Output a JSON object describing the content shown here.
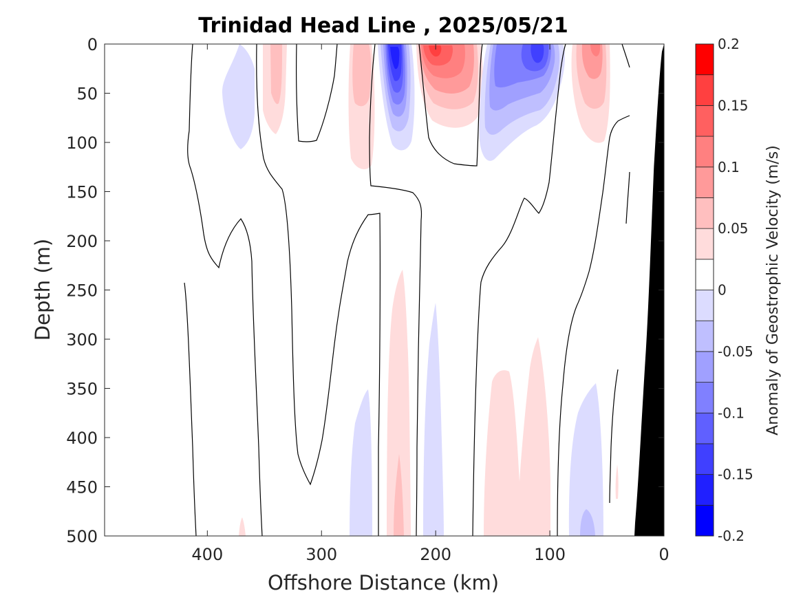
{
  "chart_data": {
    "type": "heatmap",
    "title": "Trinidad Head Line , 2025/05/21",
    "xlabel": "Offshore Distance (km)",
    "ylabel": "Depth (m)",
    "xlim": [
      490,
      0
    ],
    "ylim": [
      0,
      500
    ],
    "x_ticks": [
      "400",
      "300",
      "200",
      "100",
      "0"
    ],
    "y_ticks": [
      "0",
      "50",
      "100",
      "150",
      "200",
      "250",
      "300",
      "350",
      "400",
      "450",
      "500"
    ],
    "colorbar": {
      "label": "Anomaly of Geostrophic Velocity (m/s)",
      "range": [
        -0.2,
        0.2
      ],
      "ticks": [
        "-0.2",
        "-0.15",
        "-0.1",
        "-0.05",
        "0",
        "0.05",
        "0.1",
        "0.15",
        "0.2"
      ],
      "levels": [
        {
          "min": -0.2,
          "max": -0.175,
          "color": "#0000ff"
        },
        {
          "min": -0.175,
          "max": -0.15,
          "color": "#2020ff"
        },
        {
          "min": -0.15,
          "max": -0.125,
          "color": "#4040ff"
        },
        {
          "min": -0.125,
          "max": -0.1,
          "color": "#6060ff"
        },
        {
          "min": -0.1,
          "max": -0.075,
          "color": "#8080ff"
        },
        {
          "min": -0.075,
          "max": -0.05,
          "color": "#a0a0ff"
        },
        {
          "min": -0.05,
          "max": -0.025,
          "color": "#bfbfff"
        },
        {
          "min": -0.025,
          "max": 0,
          "color": "#dcdcff"
        },
        {
          "min": 0,
          "max": 0.025,
          "color": "#ffffff"
        },
        {
          "min": 0.025,
          "max": 0.05,
          "color": "#ffdcdc"
        },
        {
          "min": 0.05,
          "max": 0.075,
          "color": "#ffbfbf"
        },
        {
          "min": 0.075,
          "max": 0.1,
          "color": "#ff9a9a"
        },
        {
          "min": 0.1,
          "max": 0.125,
          "color": "#ff8080"
        },
        {
          "min": 0.125,
          "max": 0.15,
          "color": "#ff6060"
        },
        {
          "min": 0.15,
          "max": 0.175,
          "color": "#ff4040"
        },
        {
          "min": 0.175,
          "max": 0.2,
          "color": "#ff0000"
        }
      ]
    },
    "anomaly_features": [
      {
        "sign": "negative",
        "x_range": [
          395,
          360
        ],
        "depth_range": [
          0,
          105
        ],
        "peak": -0.03
      },
      {
        "sign": "positive",
        "x_range": [
          350,
          325
        ],
        "depth_range": [
          0,
          92
        ],
        "peak": 0.06
      },
      {
        "sign": "positive",
        "x_range": [
          285,
          255
        ],
        "depth_range": [
          0,
          128
        ],
        "peak": 0.08
      },
      {
        "sign": "negative",
        "x_range": [
          250,
          205
        ],
        "depth_range": [
          0,
          118
        ],
        "peak": -0.19
      },
      {
        "sign": "positive",
        "x_range": [
          210,
          150
        ],
        "depth_range": [
          0,
          88
        ],
        "peak": 0.16
      },
      {
        "sign": "negative",
        "x_range": [
          160,
          85
        ],
        "depth_range": [
          0,
          120
        ],
        "peak": -0.14
      },
      {
        "sign": "positive",
        "x_range": [
          80,
          40
        ],
        "depth_range": [
          0,
          110
        ],
        "peak": 0.1
      },
      {
        "sign": "positive",
        "x_range": [
          370,
          365
        ],
        "depth_range": [
          455,
          500
        ],
        "peak": 0.03
      },
      {
        "sign": "negative",
        "x_range": [
          275,
          255
        ],
        "depth_range": [
          350,
          500
        ],
        "peak": -0.04
      },
      {
        "sign": "positive",
        "x_range": [
          245,
          215
        ],
        "depth_range": [
          225,
          500
        ],
        "peak": 0.07
      },
      {
        "sign": "negative",
        "x_range": [
          205,
          190
        ],
        "depth_range": [
          265,
          500
        ],
        "peak": -0.03
      },
      {
        "sign": "positive",
        "x_range": [
          160,
          100
        ],
        "depth_range": [
          300,
          500
        ],
        "peak": 0.04
      },
      {
        "sign": "negative",
        "x_range": [
          85,
          50
        ],
        "depth_range": [
          345,
          500
        ],
        "peak": -0.06
      },
      {
        "sign": "positive",
        "x_range": [
          42,
          40
        ],
        "depth_range": [
          425,
          460
        ],
        "peak": 0.03
      }
    ],
    "zero_contours_present": true,
    "bathymetry": {
      "color": "#000000",
      "side": "right"
    }
  }
}
